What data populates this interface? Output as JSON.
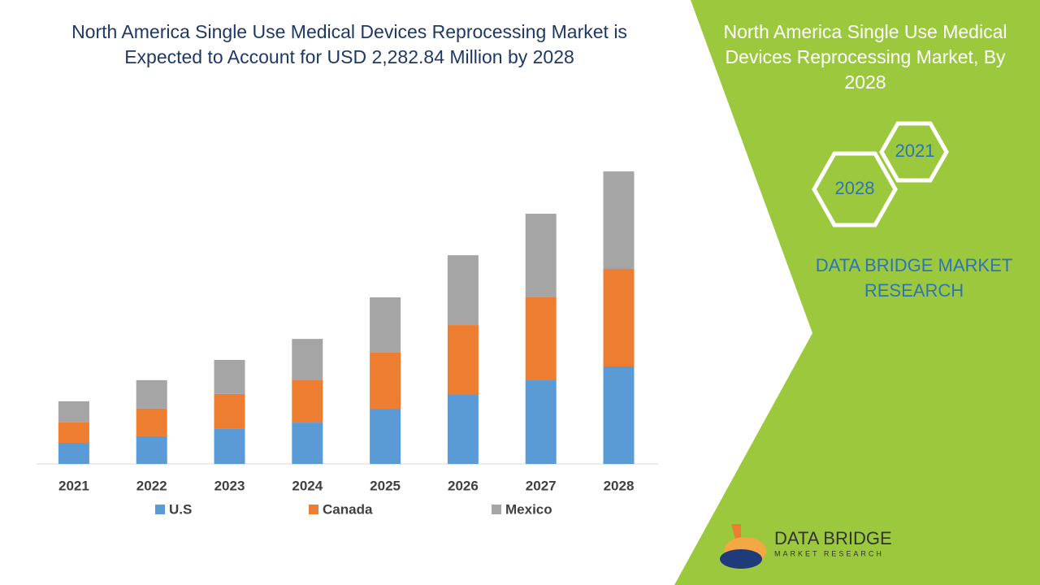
{
  "chart_data": {
    "type": "bar",
    "stacked": true,
    "title": "North America Single Use Medical Devices Reprocessing Market is Expected to Account for USD 2,282.84 Million by 2028",
    "categories": [
      "2021",
      "2022",
      "2023",
      "2024",
      "2025",
      "2026",
      "2027",
      "2028"
    ],
    "series": [
      {
        "name": "U.S",
        "color": "#5b9bd5",
        "values": [
          165,
          216,
          273,
          323,
          431,
          545,
          653,
          761
        ]
      },
      {
        "name": "Canada",
        "color": "#ed7d31",
        "values": [
          159,
          216,
          273,
          330,
          438,
          539,
          647,
          761
        ]
      },
      {
        "name": "Mexico",
        "color": "#a5a5a5",
        "values": [
          165,
          222,
          266,
          323,
          431,
          545,
          653,
          761
        ]
      }
    ]
  },
  "side_panel": {
    "title": "North America Single Use Medical Devices Reprocessing Market, By 2028",
    "hex_labels": [
      "2021",
      "2028"
    ],
    "brand": "DATA BRIDGE MARKET RESEARCH",
    "logo_name": "DATA BRIDGE",
    "logo_tagline": "MARKET RESEARCH"
  }
}
